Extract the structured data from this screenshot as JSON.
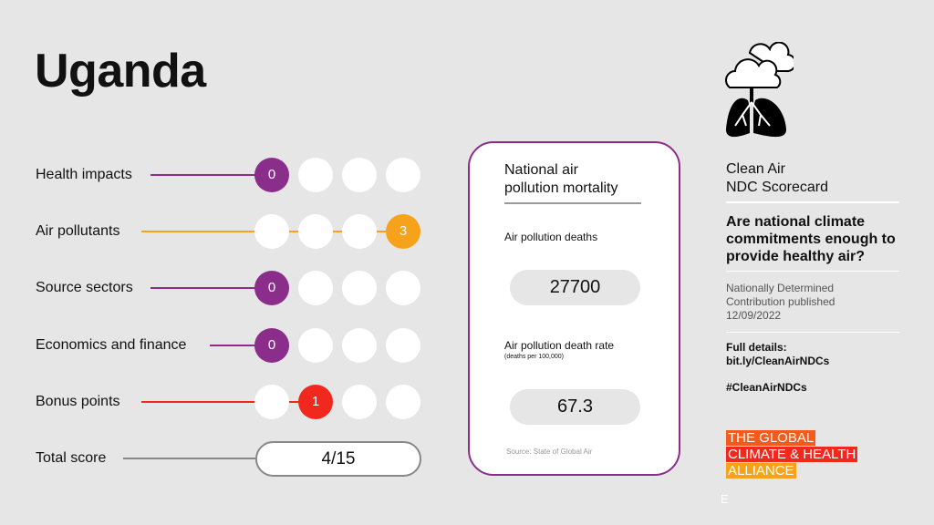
{
  "title": "Uganda",
  "colors": {
    "purple": "#8b2d8a",
    "orange": "#f7a21b",
    "red": "#f0281e",
    "line_gray": "#888888"
  },
  "rows": [
    {
      "label": "Health impacts",
      "score": "0",
      "position": 0,
      "color": "#8b2d8a"
    },
    {
      "label": "Air pollutants",
      "score": "3",
      "position": 3,
      "color": "#f7a21b"
    },
    {
      "label": "Source sectors",
      "score": "0",
      "position": 0,
      "color": "#8b2d8a"
    },
    {
      "label": "Economics and finance",
      "score": "0",
      "position": 0,
      "color": "#8b2d8a"
    },
    {
      "label": "Bonus points",
      "score": "1",
      "position": 1,
      "color": "#f0281e"
    }
  ],
  "total": {
    "label": "Total score",
    "value": "4/15"
  },
  "card": {
    "title_line1": "National air",
    "title_line2": "pollution mortality",
    "deaths_label": "Air pollution deaths",
    "deaths_value": "27700",
    "rate_label": "Air pollution death rate",
    "rate_sub": "(deaths per 100,000)",
    "rate_value": "67.3",
    "source": "Source: State of Global Air"
  },
  "side": {
    "icon": "cloud-lungs-icon",
    "heading_line1": "Clean Air",
    "heading_line2": "NDC Scorecard",
    "question": "Are national climate commitments enough to provide healthy air?",
    "ndc_line1": "Nationally Determined",
    "ndc_line2": "Contribution published",
    "ndc_date": "12/09/2022",
    "details_label": "Full details:",
    "details_link": "bit.ly/CleanAirNDCs",
    "hashtag": "#CleanAirNDCs",
    "logo": [
      "THE GLOBAL",
      "CLIMATE & HEALTH",
      "ALLIANCE"
    ],
    "corner_mark": "E"
  }
}
